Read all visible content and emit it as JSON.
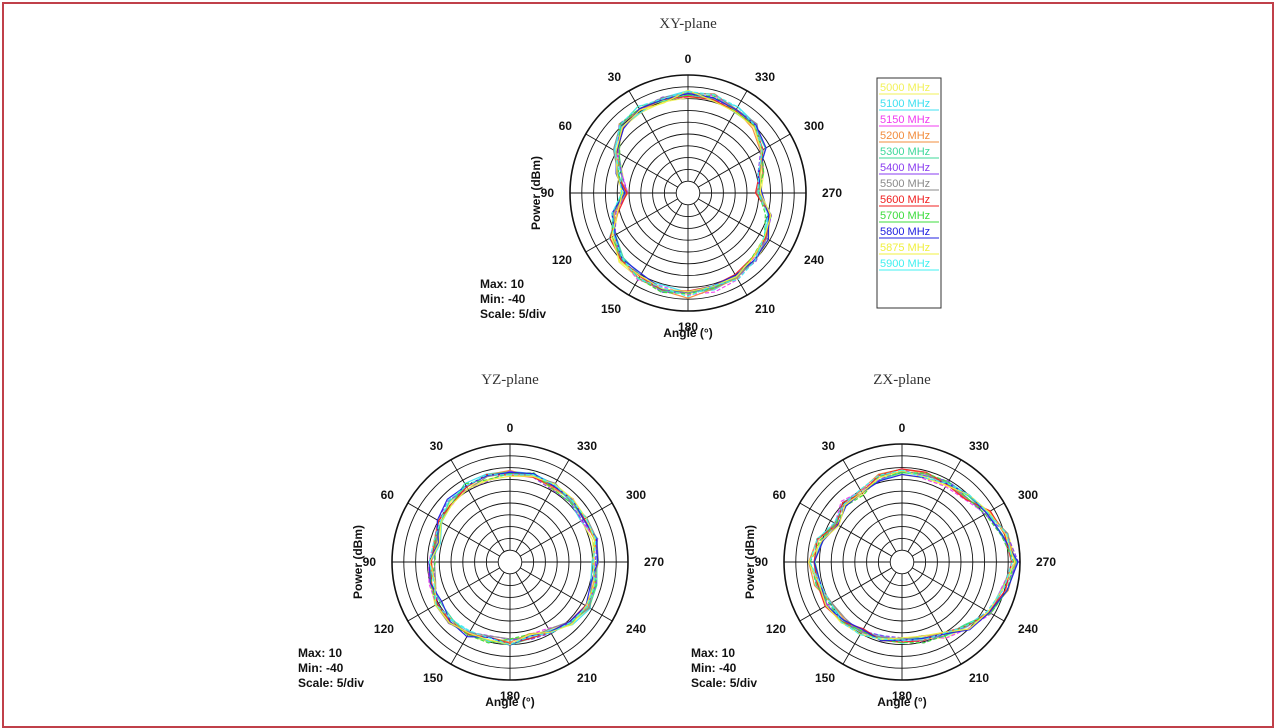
{
  "legend": {
    "entries": [
      {
        "label": "5000 MHz",
        "color": "#f2f25a"
      },
      {
        "label": "5100 MHz",
        "color": "#3fe0f0"
      },
      {
        "label": "5150 MHz",
        "color": "#f03cf0"
      },
      {
        "label": "5200 MHz",
        "color": "#f28c3c"
      },
      {
        "label": "5300 MHz",
        "color": "#3cd89a"
      },
      {
        "label": "5400 MHz",
        "color": "#8a3cf0"
      },
      {
        "label": "5500 MHz",
        "color": "#8a8a8a"
      },
      {
        "label": "5600 MHz",
        "color": "#f02020"
      },
      {
        "label": "5700 MHz",
        "color": "#3cdc3c"
      },
      {
        "label": "5800 MHz",
        "color": "#2020e0"
      },
      {
        "label": "5875 MHz",
        "color": "#f0f040"
      },
      {
        "label": "5900 MHz",
        "color": "#40f0f0"
      }
    ]
  },
  "chart_data": [
    {
      "type": "polar",
      "title": "XY-plane",
      "rlabel": "Power  (dBm)",
      "xlabel": "Angle  (°)",
      "angle_ticks": [
        "0",
        "330",
        "300",
        "270",
        "240",
        "210",
        "180",
        "150",
        "120",
        "90",
        "60",
        "30"
      ],
      "rmax": 10,
      "rmin": -40,
      "scale": 5,
      "info": [
        "Max: 10",
        "Min: -40",
        "Scale: 5/div"
      ],
      "angles_deg": [
        0,
        15,
        30,
        45,
        60,
        75,
        90,
        105,
        120,
        135,
        150,
        165,
        180,
        195,
        210,
        225,
        240,
        255,
        270,
        285,
        300,
        315,
        330,
        345
      ],
      "base_dbm": [
        2,
        1,
        1,
        0,
        -5,
        -10,
        -13,
        -8,
        -3,
        0,
        1,
        2,
        3,
        2,
        1,
        0,
        -2,
        -5,
        -10,
        -8,
        -3,
        0,
        1,
        2
      ]
    },
    {
      "type": "polar",
      "title": "YZ-plane",
      "rlabel": "Power  (dBm)",
      "xlabel": "Angle  (°)",
      "angle_ticks": [
        "0",
        "330",
        "300",
        "270",
        "240",
        "210",
        "180",
        "150",
        "120",
        "90",
        "60",
        "30"
      ],
      "rmax": 10,
      "rmin": -40,
      "scale": 5,
      "info": [
        "Max: 10",
        "Min: -40",
        "Scale: 5/div"
      ],
      "angles_deg": [
        0,
        15,
        30,
        45,
        60,
        75,
        90,
        105,
        120,
        135,
        150,
        165,
        180,
        195,
        210,
        225,
        240,
        255,
        270,
        285,
        300,
        315,
        330,
        345
      ],
      "base_dbm": [
        -2,
        -3,
        -3,
        -4,
        -6,
        -8,
        -7,
        -6,
        -5,
        -4,
        -5,
        -6,
        -6,
        -7,
        -6,
        -4,
        -2,
        -3,
        -4,
        -3,
        -4,
        -3,
        -3,
        -2
      ]
    },
    {
      "type": "polar",
      "title": "ZX-plane",
      "rlabel": "Power  (dBm)",
      "xlabel": "Angle  (°)",
      "angle_ticks": [
        "0",
        "330",
        "300",
        "270",
        "240",
        "210",
        "180",
        "150",
        "120",
        "90",
        "60",
        "30"
      ],
      "rmax": 10,
      "rmin": -40,
      "scale": 5,
      "info": [
        "Max: 10",
        "Min: -40",
        "Scale: 5/div"
      ],
      "angles_deg": [
        0,
        15,
        30,
        45,
        60,
        75,
        90,
        105,
        120,
        135,
        150,
        165,
        180,
        195,
        210,
        225,
        240,
        255,
        270,
        285,
        300,
        315,
        330,
        345
      ],
      "base_dbm": [
        -2,
        -3,
        -6,
        -5,
        -8,
        -4,
        -2,
        -3,
        -4,
        -5,
        -6,
        -7,
        -7,
        -6,
        -4,
        -1,
        3,
        5,
        8,
        5,
        2,
        -1,
        -2,
        -2
      ]
    }
  ]
}
